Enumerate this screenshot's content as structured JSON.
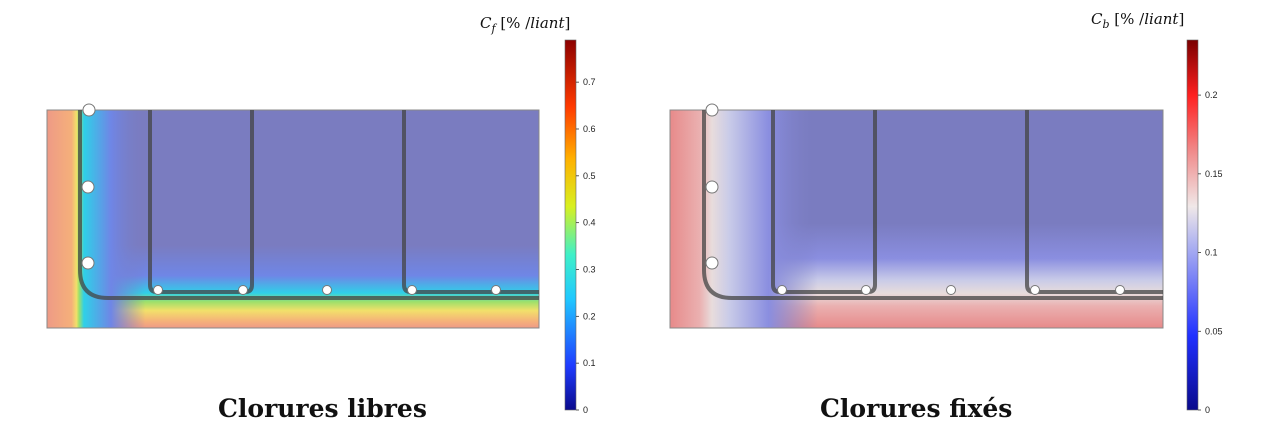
{
  "figures": [
    {
      "caption": "Clorures libres",
      "colorbar": {
        "symbol": "C",
        "subscript": "f",
        "unit_text": " [% /",
        "unit_italic": "liant",
        "unit_close": "]",
        "ticks": [
          "0",
          "0.1",
          "0.2",
          "0.3",
          "0.4",
          "0.5",
          "0.6",
          "0.7"
        ],
        "tick_values": [
          0,
          0.1,
          0.2,
          0.3,
          0.4,
          0.5,
          0.6,
          0.7
        ],
        "range": [
          0,
          0.79
        ],
        "colormap": "rainbow"
      }
    },
    {
      "caption": "Clorures fixés",
      "colorbar": {
        "symbol": "C",
        "subscript": "b",
        "unit_text": " [% /",
        "unit_italic": "liant",
        "unit_close": "]",
        "ticks": [
          "0",
          "0.05",
          "0.1",
          "0.15",
          "0.2"
        ],
        "tick_values": [
          0,
          0.05,
          0.1,
          0.15,
          0.2
        ],
        "range": [
          0,
          0.235
        ],
        "colormap": "blue-white-red"
      }
    }
  ]
}
